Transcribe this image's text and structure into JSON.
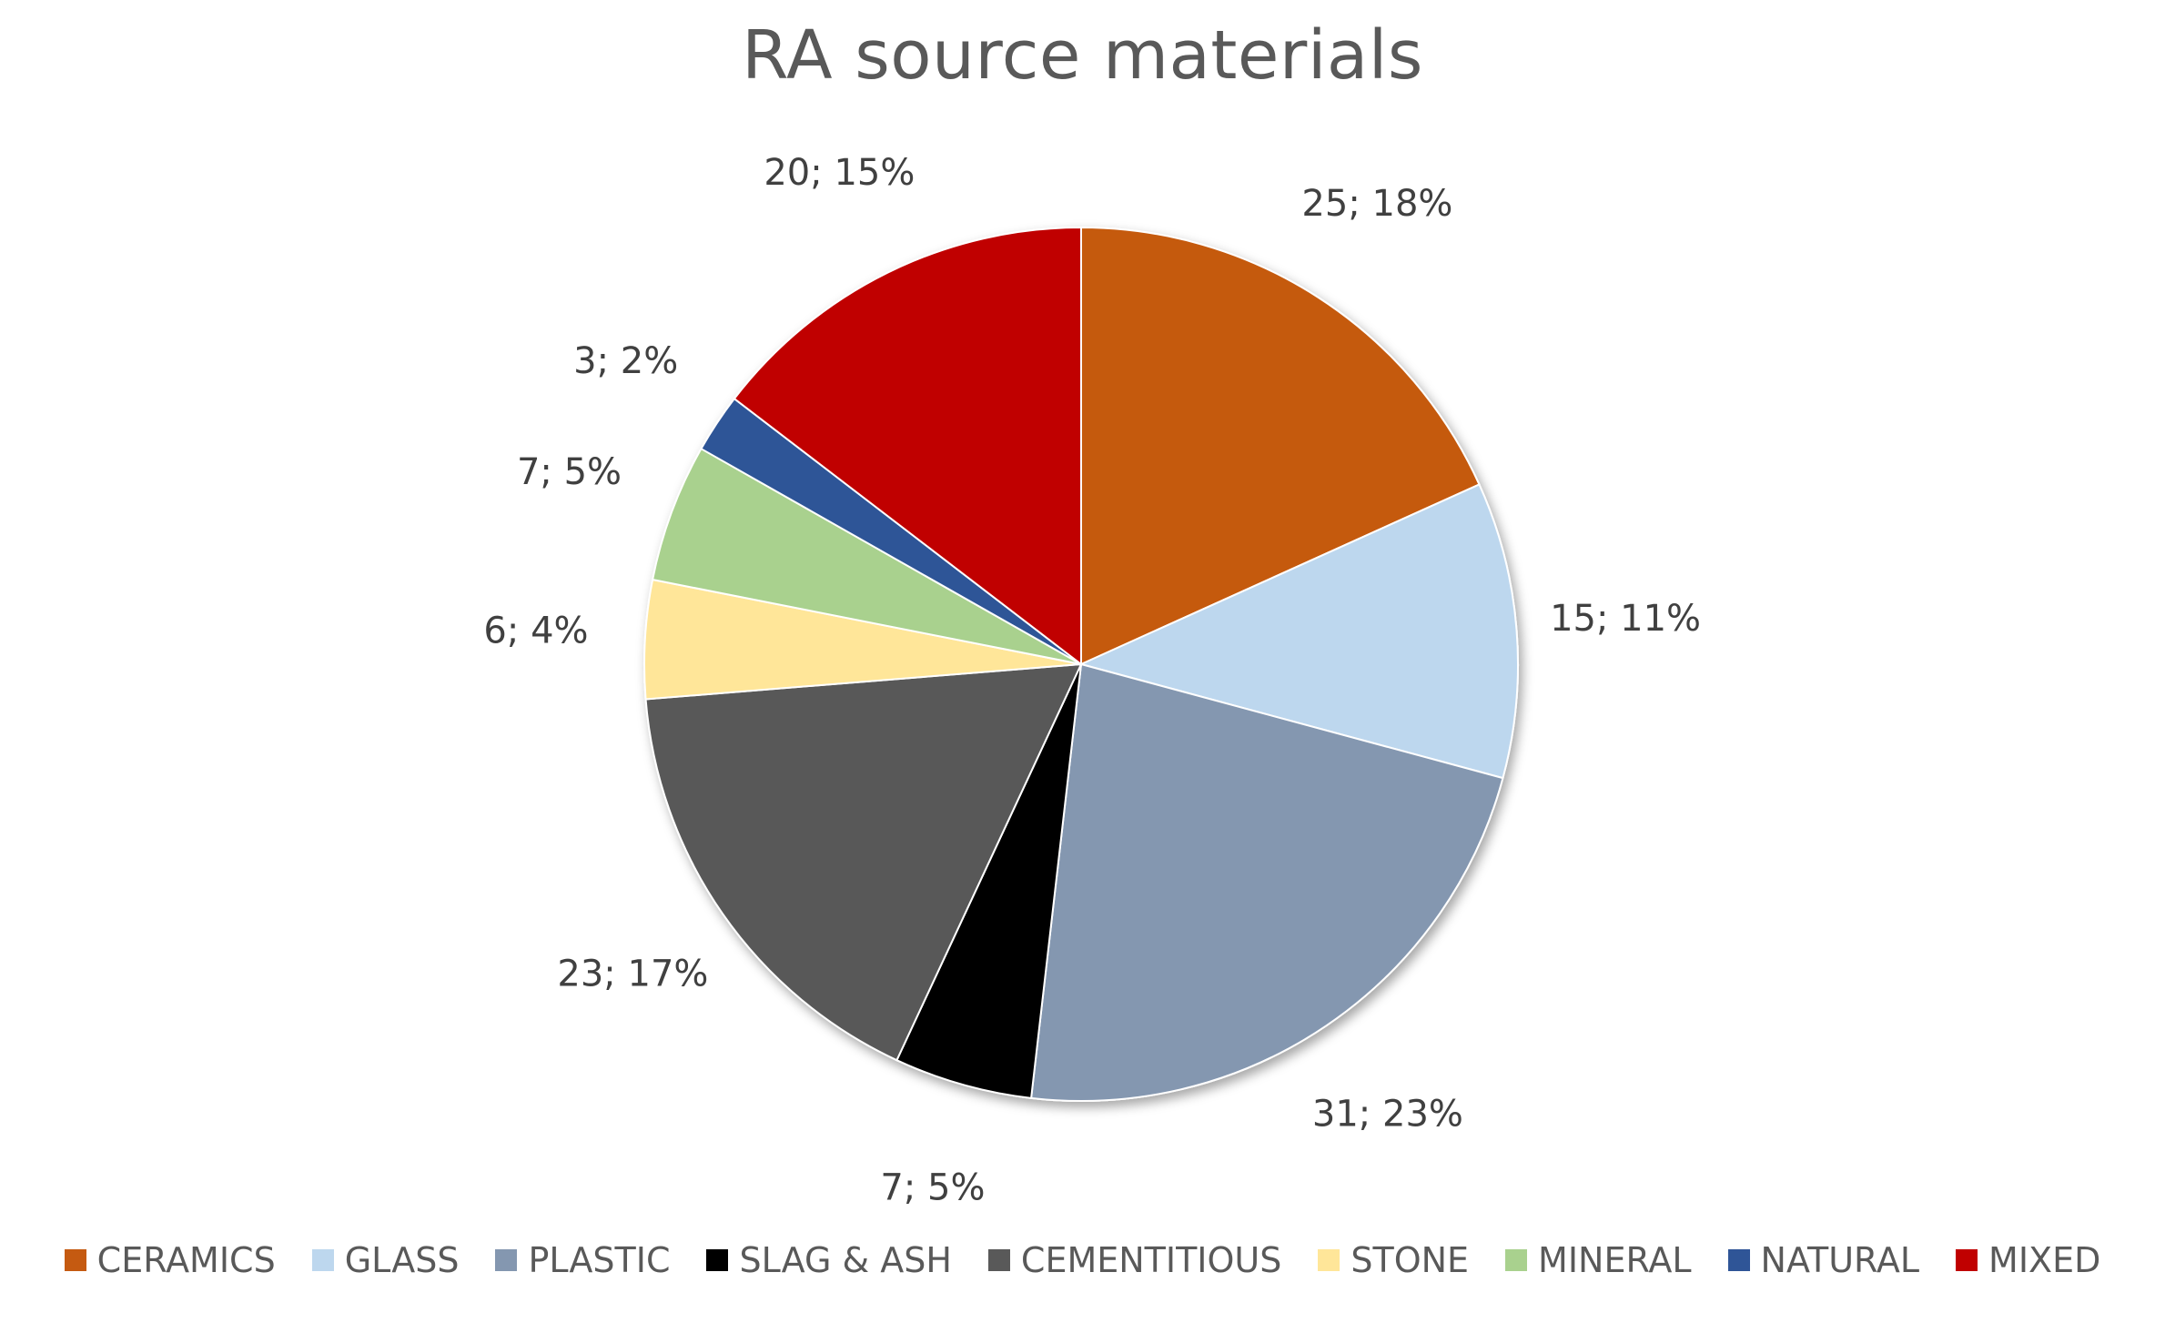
{
  "chart_data": {
    "type": "pie",
    "title": "RA source materials",
    "legend_position": "bottom",
    "start_angle_deg": 0,
    "direction": "clockwise",
    "slices": [
      {
        "name": "CERAMICS",
        "value": 25,
        "percent": "18%",
        "label": "25; 18%",
        "color": "#C55A11"
      },
      {
        "name": "GLASS",
        "value": 15,
        "percent": "11%",
        "label": "15; 11%",
        "color": "#BDD7EE"
      },
      {
        "name": "PLASTIC",
        "value": 31,
        "percent": "23%",
        "label": "31; 23%",
        "color": "#8497B0"
      },
      {
        "name": "SLAG & ASH",
        "value": 7,
        "percent": "5%",
        "label": "7; 5%",
        "color": "#000000"
      },
      {
        "name": "CEMENTITIOUS",
        "value": 23,
        "percent": "17%",
        "label": "23; 17%",
        "color": "#595959"
      },
      {
        "name": "STONE",
        "value": 6,
        "percent": "4%",
        "label": "6; 4%",
        "color": "#FFE699"
      },
      {
        "name": "MINERAL",
        "value": 7,
        "percent": "5%",
        "label": "7; 5%",
        "color": "#A9D18E"
      },
      {
        "name": "NATURAL",
        "value": 3,
        "percent": "2%",
        "label": "3; 2%",
        "color": "#2F5597"
      },
      {
        "name": "MIXED",
        "value": 20,
        "percent": "15%",
        "label": "20; 15%",
        "color": "#C00000"
      }
    ]
  }
}
